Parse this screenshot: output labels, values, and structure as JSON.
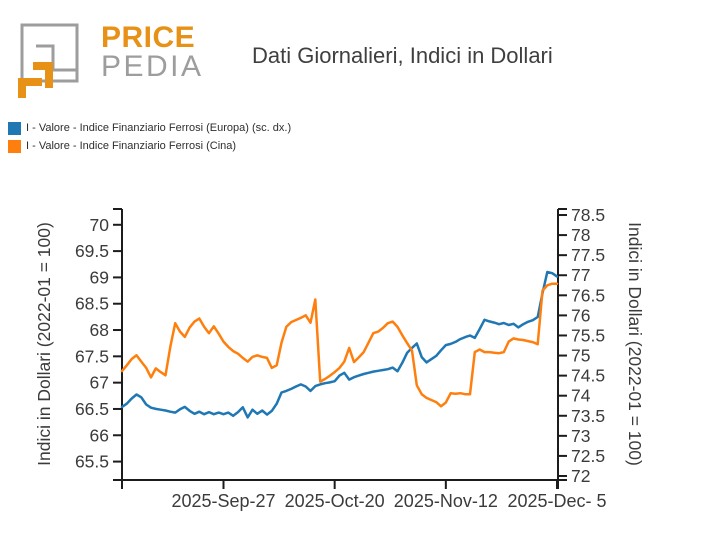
{
  "logo": {
    "brand_top": "PRICE",
    "brand_bottom": "PEDIA",
    "orange": "#e89117",
    "gray": "#9d9d9d"
  },
  "title": "Dati Giornalieri, Indici in Dollari",
  "legend": [
    {
      "label": "I - Valore - Indice Finanziario Ferrosi (Europa) (sc. dx.)",
      "color": "#1f77b4"
    },
    {
      "label": "I - Valore - Indice Finanziario Ferrosi (Cina)",
      "color": "#ff7f0e"
    }
  ],
  "chart_data": {
    "type": "line",
    "title": "Dati Giornalieri, Indici in Dollari",
    "x_start_date": "2025-09-06",
    "x_end_date": "2025-12-05",
    "x_frequency": "daily",
    "x_tick_labels": [
      "2025-Sep-27",
      "2025-Oct-20",
      "2025-Nov-12",
      "2025-Dec- 5"
    ],
    "x_tick_day_index": [
      21,
      44,
      67,
      90
    ],
    "grid": "off",
    "legend_position": "top-left",
    "left_axis": {
      "label": "Indici in Dollari (2022-01 = 100)",
      "min": 65.15,
      "max": 70.3,
      "tick_min": 65.5,
      "tick_max": 70.0,
      "tick_step": 0.5
    },
    "right_axis": {
      "label": "Indici in Dollari (2022-01 = 100)",
      "min": 71.9,
      "max": 78.65,
      "tick_min": 72.0,
      "tick_max": 78.5,
      "tick_step": 0.5
    },
    "series": [
      {
        "name": "I - Valore - Indice Finanziario Ferrosi (Europa) (sc. dx.)",
        "axis": "right",
        "color": "#1f77b4",
        "values": [
          73.72,
          73.8,
          73.93,
          74.03,
          73.96,
          73.78,
          73.7,
          73.67,
          73.65,
          73.63,
          73.6,
          73.58,
          73.66,
          73.72,
          73.62,
          73.55,
          73.6,
          73.54,
          73.59,
          73.54,
          73.58,
          73.54,
          73.58,
          73.5,
          73.59,
          73.71,
          73.46,
          73.65,
          73.55,
          73.63,
          73.53,
          73.62,
          73.8,
          74.08,
          74.12,
          74.17,
          74.23,
          74.28,
          74.23,
          74.12,
          74.24,
          74.28,
          74.31,
          74.33,
          74.36,
          74.5,
          74.57,
          74.4,
          74.46,
          74.5,
          74.54,
          74.57,
          74.6,
          74.62,
          74.64,
          74.66,
          74.7,
          74.61,
          74.82,
          75.07,
          75.19,
          75.3,
          74.96,
          74.83,
          74.91,
          74.99,
          75.13,
          75.26,
          75.29,
          75.34,
          75.41,
          75.46,
          75.5,
          75.44,
          75.66,
          75.89,
          75.85,
          75.82,
          75.78,
          75.81,
          75.76,
          75.79,
          75.7,
          75.78,
          75.84,
          75.88,
          75.96,
          76.55,
          77.08,
          77.05,
          76.97
        ]
      },
      {
        "name": "I - Valore - Indice Finanziario Ferrosi (Cina)",
        "axis": "left",
        "color": "#ff7f0e",
        "values": [
          67.22,
          67.33,
          67.45,
          67.52,
          67.4,
          67.28,
          67.1,
          67.27,
          67.2,
          67.14,
          67.68,
          68.13,
          67.97,
          67.87,
          68.05,
          68.16,
          68.22,
          68.06,
          67.94,
          68.07,
          67.93,
          67.78,
          67.68,
          67.6,
          67.55,
          67.47,
          67.4,
          67.49,
          67.52,
          67.49,
          67.47,
          67.28,
          67.33,
          67.76,
          68.06,
          68.15,
          68.19,
          68.23,
          68.28,
          68.14,
          68.58,
          67.02,
          67.07,
          67.13,
          67.2,
          67.28,
          67.4,
          67.66,
          67.39,
          67.48,
          67.58,
          67.76,
          67.94,
          67.97,
          68.04,
          68.13,
          68.16,
          68.06,
          67.9,
          67.75,
          67.61,
          66.95,
          66.78,
          66.71,
          66.67,
          66.63,
          66.55,
          66.62,
          66.8,
          66.79,
          66.8,
          66.78,
          66.78,
          67.58,
          67.63,
          67.58,
          67.58,
          67.57,
          67.56,
          67.58,
          67.78,
          67.84,
          67.82,
          67.81,
          67.79,
          67.77,
          67.73,
          68.75,
          68.85,
          68.88,
          68.88
        ]
      }
    ]
  }
}
